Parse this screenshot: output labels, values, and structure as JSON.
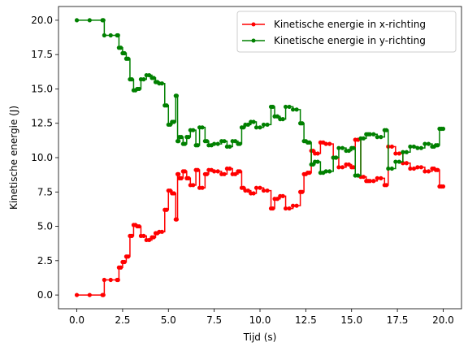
{
  "chart_data": {
    "type": "line",
    "title": "",
    "xlabel": "Tijd (s)",
    "ylabel": "Kinetische energie (J)",
    "xlim": [
      -1.0,
      21.0
    ],
    "ylim": [
      -1.0,
      21.0
    ],
    "xticks": [
      "0.0",
      "2.5",
      "5.0",
      "7.5",
      "10.0",
      "12.5",
      "15.0",
      "17.5",
      "20.0"
    ],
    "yticks": [
      "0.0",
      "2.5",
      "5.0",
      "7.5",
      "10.0",
      "12.5",
      "15.0",
      "17.5",
      "20.0"
    ],
    "legend_position": "top-right",
    "grid": false,
    "markers": true,
    "series": [
      {
        "name": "Kinetische energie in x-richting",
        "color": "#ff0000",
        "x": [
          0.0,
          1.4,
          1.5,
          2.2,
          2.3,
          2.5,
          2.7,
          2.9,
          3.1,
          3.3,
          3.5,
          3.8,
          4.1,
          4.3,
          4.5,
          4.8,
          5.0,
          5.2,
          5.4,
          5.5,
          5.6,
          5.8,
          6.0,
          6.2,
          6.5,
          6.7,
          7.0,
          7.2,
          7.5,
          7.9,
          8.2,
          8.5,
          8.8,
          9.0,
          9.2,
          9.5,
          9.8,
          10.2,
          10.6,
          10.8,
          11.1,
          11.4,
          11.8,
          12.2,
          12.4,
          12.6,
          12.8,
          13.0,
          13.3,
          13.6,
          14.0,
          14.3,
          14.7,
          15.0,
          15.2,
          15.5,
          15.8,
          16.0,
          16.4,
          16.8,
          17.0,
          17.4,
          17.8,
          18.2,
          18.6,
          19.0,
          19.4,
          19.6,
          19.8,
          20.0
        ],
        "y": [
          0.0,
          0.0,
          1.1,
          1.1,
          2.0,
          2.4,
          2.8,
          4.3,
          5.1,
          5.0,
          4.3,
          4.0,
          4.2,
          4.5,
          4.6,
          6.2,
          7.6,
          7.4,
          5.5,
          8.8,
          8.5,
          9.0,
          8.5,
          8.0,
          9.1,
          7.8,
          8.8,
          9.1,
          9.0,
          8.8,
          9.2,
          8.8,
          9.0,
          7.8,
          7.6,
          7.4,
          7.8,
          7.6,
          6.3,
          7.0,
          7.2,
          6.3,
          6.5,
          7.5,
          8.8,
          8.9,
          10.5,
          10.3,
          11.1,
          11.0,
          10.0,
          9.3,
          9.5,
          9.3,
          11.3,
          8.6,
          8.3,
          8.3,
          8.5,
          8.0,
          10.8,
          10.3,
          9.6,
          9.2,
          9.3,
          9.0,
          9.2,
          9.1,
          7.9,
          7.9
        ]
      },
      {
        "name": "Kinetische energie in y-richting",
        "color": "#008000",
        "x": [
          0.0,
          1.4,
          1.5,
          2.2,
          2.3,
          2.5,
          2.7,
          2.9,
          3.1,
          3.3,
          3.5,
          3.8,
          4.1,
          4.3,
          4.5,
          4.8,
          5.0,
          5.2,
          5.4,
          5.5,
          5.6,
          5.8,
          6.0,
          6.2,
          6.5,
          6.7,
          7.0,
          7.2,
          7.5,
          7.9,
          8.2,
          8.5,
          8.8,
          9.0,
          9.2,
          9.5,
          9.8,
          10.2,
          10.6,
          10.8,
          11.1,
          11.4,
          11.8,
          12.2,
          12.4,
          12.6,
          12.8,
          13.0,
          13.3,
          13.6,
          14.0,
          14.3,
          14.7,
          15.0,
          15.2,
          15.5,
          15.8,
          16.0,
          16.4,
          16.8,
          17.0,
          17.4,
          17.8,
          18.2,
          18.6,
          19.0,
          19.4,
          19.6,
          19.8,
          20.0
        ],
        "y": [
          20.0,
          20.0,
          18.9,
          18.9,
          18.0,
          17.6,
          17.2,
          15.7,
          14.9,
          15.0,
          15.7,
          16.0,
          15.8,
          15.5,
          15.4,
          13.8,
          12.4,
          12.6,
          14.5,
          11.2,
          11.5,
          11.0,
          11.5,
          12.0,
          10.9,
          12.2,
          11.2,
          10.9,
          11.0,
          11.2,
          10.8,
          11.2,
          11.0,
          12.2,
          12.4,
          12.6,
          12.2,
          12.4,
          13.7,
          13.0,
          12.8,
          13.7,
          13.5,
          12.5,
          11.2,
          11.1,
          9.5,
          9.7,
          8.9,
          9.0,
          10.0,
          10.7,
          10.5,
          10.7,
          8.7,
          11.4,
          11.7,
          11.7,
          11.5,
          12.0,
          9.2,
          9.7,
          10.4,
          10.8,
          10.7,
          11.0,
          10.8,
          10.9,
          12.1,
          12.1
        ]
      }
    ]
  }
}
